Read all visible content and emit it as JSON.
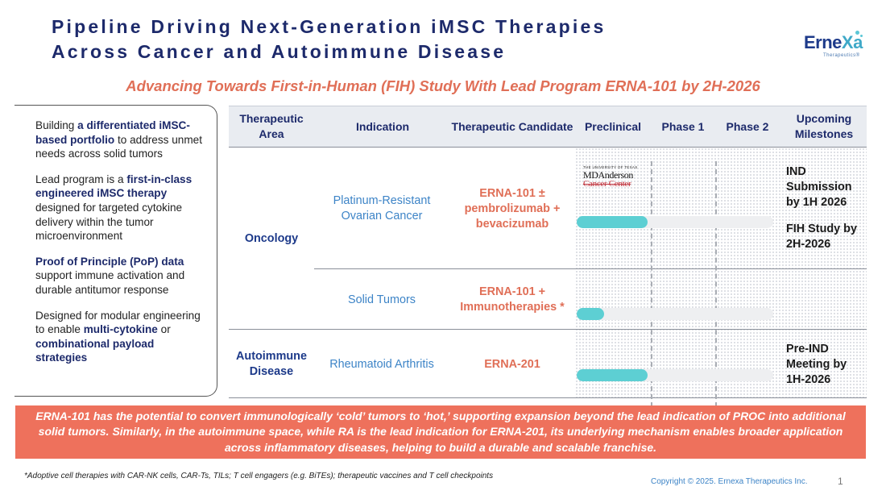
{
  "title": {
    "line1": "Pipeline Driving Next-Generation iMSC Therapies",
    "line2": "Across Cancer and Autoimmune Disease"
  },
  "logo": {
    "word_start": "Erne",
    "word_accent": "Xa",
    "tagline": "Therapeutics®"
  },
  "subtitle": "Advancing Towards First-in-Human (FIH) Study With Lead Program ERNA-101 by 2H-2026",
  "left_panel": {
    "p1": {
      "pre": "Building ",
      "bold": "a differentiated iMSC-based portfolio",
      "post": " to address unmet needs across solid tumors"
    },
    "p2": {
      "pre": "Lead program is a ",
      "bold": "first-in-class engineered iMSC therapy",
      "post": " designed for targeted cytokine delivery within the tumor microenvironment"
    },
    "p3": {
      "bold": "Proof of Principle (PoP) data",
      "post": " support immune activation and durable antitumor response"
    },
    "p4": {
      "pre": "Designed for modular engineering to enable ",
      "bold1": "multi-cytokine",
      "mid": " or ",
      "bold2": "combinational payload strategies"
    }
  },
  "table": {
    "headers": {
      "area": "Therapeutic Area",
      "indication": "Indication",
      "candidate": "Therapeutic Candidate",
      "preclinical": "Preclinical",
      "phase1": "Phase 1",
      "phase2": "Phase 2",
      "milestones": "Upcoming Milestones"
    },
    "rows": [
      {
        "area": "Oncology",
        "indication": "Platinum-Resistant Ovarian Cancer",
        "candidate": "ERNA-101 ± pembrolizumab + bevacizumab",
        "progress": 0.36,
        "partner": {
          "top": "THE UNIVERSITY OF TEXAS",
          "name1": "MDAnderson",
          "name2": "Cancer Center"
        },
        "milestone1": "IND Submission by 1H 2026",
        "milestone2": "FIH Study by 2H-2026"
      },
      {
        "indication": "Solid Tumors",
        "candidate": "ERNA-101 + Immunotherapies *",
        "progress": 0.14
      },
      {
        "area": "Autoimmune Disease",
        "indication": "Rheumatoid Arthritis",
        "candidate": "ERNA-201",
        "progress": 0.36,
        "milestone1": "Pre-IND Meeting by 1H-2026"
      }
    ]
  },
  "banner": "ERNA-101 has the potential to convert immunologically ‘cold’ tumors to ‘hot,’ supporting expansion beyond the lead indication of PROC into additional solid tumors. Similarly, in the autoimmune space, while RA is the lead indication for ERNA-201, its underlying mechanism enables broader application across inflammatory diseases, helping to build a durable and scalable franchise.",
  "footnote": "*Adoptive cell therapies with CAR-NK cells, CAR-Ts, TILs; T cell engagers (e.g. BiTEs); therapeutic vaccines and T cell checkpoints",
  "copyright": "Copyright © 2025. Ernexa Therapeutics Inc.",
  "page_number": "1"
}
